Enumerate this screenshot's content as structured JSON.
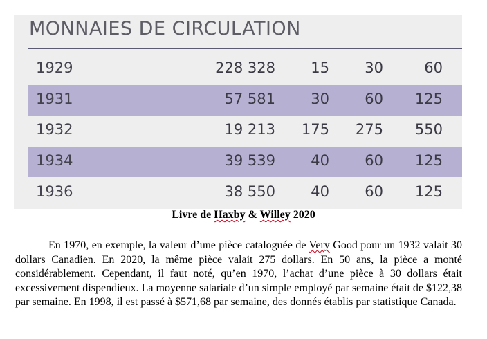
{
  "table": {
    "title": "MONNAIES DE CIRCULATION",
    "rows": [
      {
        "year": "1929",
        "mintage": "228 328",
        "v1": "15",
        "v2": "30",
        "v3": "60"
      },
      {
        "year": "1931",
        "mintage": "57 581",
        "v1": "30",
        "v2": "60",
        "v3": "125"
      },
      {
        "year": "1932",
        "mintage": "19 213",
        "v1": "175",
        "v2": "275",
        "v3": "550"
      },
      {
        "year": "1934",
        "mintage": "39 539",
        "v1": "40",
        "v2": "60",
        "v3": "125"
      },
      {
        "year": "1936",
        "mintage": "38 550",
        "v1": "40",
        "v2": "60",
        "v3": "125"
      }
    ]
  },
  "caption": {
    "part1": "Livre de ",
    "haxby": "Haxby",
    "part2": " & ",
    "willey": "Willey",
    "part3": " 2020"
  },
  "paragraph": {
    "s1": "En 1970, en exemple, la valeur d’une pièce cataloguée de ",
    "very": "Very",
    "s2": " Good pour un 1932 valait 30 dollars Canadien. En 2020, la même pièce valait 275 dollars. En 50 ans, la pièce a monté considérablement. Cependant, il faut noté, qu’en 1970, l’achat d’une pièce à 30 dollars était excessivement dispendieux. La moyenne salariale d’un simple employé par semaine était de $122,38 par semaine. En 1998, il est passé à $571,68 par semaine, des donnés établis par statistique Canada."
  }
}
